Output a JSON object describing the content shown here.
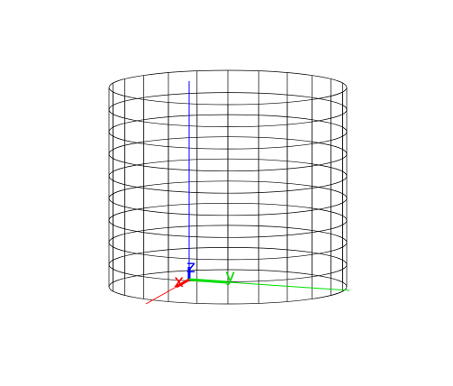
{
  "scene": {
    "background": "#ffffff",
    "wireframe_color": "#000000",
    "cylinder": {
      "rings": 10,
      "segments": 24
    },
    "axes": {
      "x": {
        "label": "x",
        "color": "#ff0000"
      },
      "y": {
        "label": "y",
        "color": "#00dd00"
      },
      "z": {
        "label": "z",
        "color": "#0000ff"
      }
    }
  }
}
